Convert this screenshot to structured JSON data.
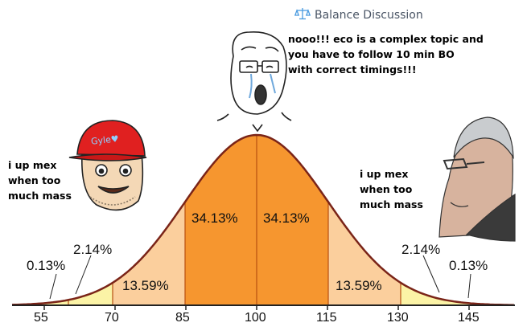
{
  "header": {
    "title": "Balance Discussion",
    "icon": "scale-icon"
  },
  "captions": {
    "left": "i up mex\nwhen too\nmuch mass",
    "middle": "nooo!!! eco is a complex topic and\nyou have to follow 10 min BO\nwith correct timings!!!",
    "right": "i up mex\nwhen too\nmuch mass"
  },
  "hat_text": "Gyle♥",
  "distribution": {
    "center_left": "34.13%",
    "center_right": "34.13%",
    "mid_left": "13.59%",
    "mid_right": "13.59%",
    "tail_left": "2.14%",
    "tail_right": "2.14%",
    "far_left": "0.13%",
    "far_right": "0.13%"
  },
  "axis": {
    "ticks": [
      "55",
      "70",
      "85",
      "100",
      "115",
      "130",
      "145"
    ]
  },
  "colors": {
    "center": "#f6962f",
    "mid": "#fbcf9d",
    "tail": "#fbf3a6",
    "curve": "#7a2418",
    "divider": "#b85010"
  }
}
